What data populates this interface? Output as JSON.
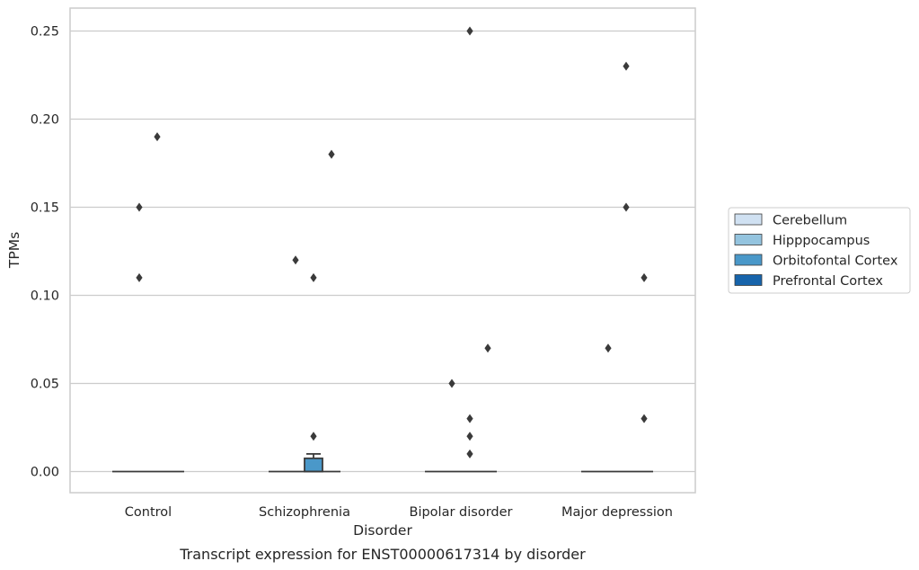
{
  "chart_data": {
    "type": "box",
    "xlabel": "Disorder",
    "ylabel": "TPMs",
    "caption": "Transcript expression for ENST00000617314 by disorder",
    "ylim": [
      -0.012,
      0.263
    ],
    "yticks": [
      0.0,
      0.05,
      0.1,
      0.15,
      0.2,
      0.25
    ],
    "ytick_labels": [
      "0.00",
      "0.05",
      "0.10",
      "0.15",
      "0.20",
      "0.25"
    ],
    "grid": "horizontal",
    "legend_position": "right",
    "categories": [
      "Control",
      "Schizophrenia",
      "Bipolar disorder",
      "Major depression"
    ],
    "hue_levels": [
      {
        "name": "Cerebellum",
        "color": "#d0e1f2"
      },
      {
        "name": "Hipppocampus",
        "color": "#94c4df"
      },
      {
        "name": "Orbitofontal Cortex",
        "color": "#4a98c9"
      },
      {
        "name": "Prefrontal Cortex",
        "color": "#1764ab"
      }
    ],
    "boxes": [
      {
        "category": "Control",
        "hue": "Cerebellum",
        "q1": 0,
        "median": 0,
        "q3": 0,
        "whisker_low": 0,
        "whisker_high": 0,
        "outliers": []
      },
      {
        "category": "Control",
        "hue": "Hipppocampus",
        "q1": 0,
        "median": 0,
        "q3": 0,
        "whisker_low": 0,
        "whisker_high": 0,
        "outliers": [
          0.15,
          0.11
        ]
      },
      {
        "category": "Control",
        "hue": "Orbitofontal Cortex",
        "q1": 0,
        "median": 0,
        "q3": 0,
        "whisker_low": 0,
        "whisker_high": 0,
        "outliers": [
          0.19
        ]
      },
      {
        "category": "Control",
        "hue": "Prefrontal Cortex",
        "q1": 0,
        "median": 0,
        "q3": 0,
        "whisker_low": 0,
        "whisker_high": 0,
        "outliers": []
      },
      {
        "category": "Schizophrenia",
        "hue": "Cerebellum",
        "q1": 0,
        "median": 0,
        "q3": 0,
        "whisker_low": 0,
        "whisker_high": 0,
        "outliers": []
      },
      {
        "category": "Schizophrenia",
        "hue": "Hipppocampus",
        "q1": 0,
        "median": 0,
        "q3": 0,
        "whisker_low": 0,
        "whisker_high": 0,
        "outliers": [
          0.12
        ]
      },
      {
        "category": "Schizophrenia",
        "hue": "Orbitofontal Cortex",
        "q1": 0,
        "median": 0,
        "q3": 0.0075,
        "whisker_low": 0,
        "whisker_high": 0.01,
        "outliers": [
          0.11,
          0.02
        ]
      },
      {
        "category": "Schizophrenia",
        "hue": "Prefrontal Cortex",
        "q1": 0,
        "median": 0,
        "q3": 0,
        "whisker_low": 0,
        "whisker_high": 0,
        "outliers": [
          0.18
        ]
      },
      {
        "category": "Bipolar disorder",
        "hue": "Cerebellum",
        "q1": 0,
        "median": 0,
        "q3": 0,
        "whisker_low": 0,
        "whisker_high": 0,
        "outliers": []
      },
      {
        "category": "Bipolar disorder",
        "hue": "Hipppocampus",
        "q1": 0,
        "median": 0,
        "q3": 0,
        "whisker_low": 0,
        "whisker_high": 0,
        "outliers": [
          0.05
        ]
      },
      {
        "category": "Bipolar disorder",
        "hue": "Orbitofontal Cortex",
        "q1": 0,
        "median": 0,
        "q3": 0,
        "whisker_low": 0,
        "whisker_high": 0,
        "outliers": [
          0.25,
          0.03,
          0.02,
          0.01
        ]
      },
      {
        "category": "Bipolar disorder",
        "hue": "Prefrontal Cortex",
        "q1": 0,
        "median": 0,
        "q3": 0,
        "whisker_low": 0,
        "whisker_high": 0,
        "outliers": [
          0.07
        ]
      },
      {
        "category": "Major depression",
        "hue": "Cerebellum",
        "q1": 0,
        "median": 0,
        "q3": 0,
        "whisker_low": 0,
        "whisker_high": 0,
        "outliers": []
      },
      {
        "category": "Major depression",
        "hue": "Hipppocampus",
        "q1": 0,
        "median": 0,
        "q3": 0,
        "whisker_low": 0,
        "whisker_high": 0,
        "outliers": [
          0.07
        ]
      },
      {
        "category": "Major depression",
        "hue": "Orbitofontal Cortex",
        "q1": 0,
        "median": 0,
        "q3": 0,
        "whisker_low": 0,
        "whisker_high": 0,
        "outliers": [
          0.23,
          0.15
        ]
      },
      {
        "category": "Major depression",
        "hue": "Prefrontal Cortex",
        "q1": 0,
        "median": 0,
        "q3": 0,
        "whisker_low": 0,
        "whisker_high": 0,
        "outliers": [
          0.03,
          0.11
        ]
      }
    ]
  }
}
